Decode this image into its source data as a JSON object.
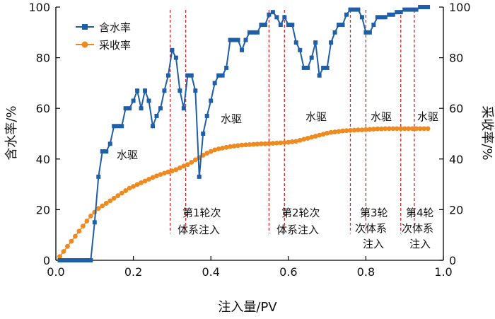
{
  "chart_data": {
    "type": "line",
    "title": "",
    "xlabel": "注入量/PV",
    "ylabel_left": "含水率/%",
    "ylabel_right": "采收率/%",
    "xlim": [
      0,
      1.0
    ],
    "ylim_left": [
      0,
      100
    ],
    "ylim_right": [
      0,
      100
    ],
    "xticks": [
      0.0,
      0.2,
      0.4,
      0.6,
      0.8,
      1.0
    ],
    "xtick_labels": [
      "0.0",
      "0.2",
      "0.4",
      "0.6",
      "0.8",
      "1.0"
    ],
    "yticks": [
      0,
      20,
      40,
      60,
      80,
      100
    ],
    "ytick_labels": [
      "0",
      "20",
      "40",
      "60",
      "80",
      "100"
    ],
    "legend": "top-left",
    "grid": false,
    "colors": {
      "water_cut": "#1f5fa8",
      "recovery": "#ee8a1f",
      "divider": "#d62728",
      "axis": "#000000"
    },
    "series": [
      {
        "name": "含水率",
        "axis": "left",
        "marker": "square",
        "x": [
          0.01,
          0.02,
          0.03,
          0.04,
          0.05,
          0.06,
          0.07,
          0.08,
          0.09,
          0.1,
          0.11,
          0.12,
          0.13,
          0.14,
          0.15,
          0.16,
          0.17,
          0.18,
          0.19,
          0.2,
          0.21,
          0.22,
          0.23,
          0.24,
          0.25,
          0.26,
          0.27,
          0.28,
          0.29,
          0.3,
          0.31,
          0.32,
          0.33,
          0.34,
          0.35,
          0.36,
          0.37,
          0.38,
          0.39,
          0.4,
          0.41,
          0.42,
          0.43,
          0.44,
          0.45,
          0.46,
          0.47,
          0.48,
          0.49,
          0.5,
          0.51,
          0.52,
          0.53,
          0.54,
          0.55,
          0.56,
          0.57,
          0.58,
          0.59,
          0.6,
          0.61,
          0.62,
          0.63,
          0.64,
          0.65,
          0.66,
          0.67,
          0.68,
          0.69,
          0.7,
          0.71,
          0.72,
          0.73,
          0.74,
          0.75,
          0.76,
          0.77,
          0.78,
          0.79,
          0.8,
          0.81,
          0.82,
          0.83,
          0.84,
          0.85,
          0.86,
          0.87,
          0.88,
          0.89,
          0.9,
          0.91,
          0.92,
          0.93,
          0.94,
          0.95,
          0.96
        ],
        "values": [
          0,
          0,
          0,
          0,
          0,
          0,
          0,
          0,
          0,
          15,
          33,
          43,
          43,
          46,
          53,
          53,
          53,
          60,
          60,
          63,
          67,
          60,
          67,
          63,
          53,
          57,
          60,
          67,
          73,
          83,
          80,
          67,
          60,
          73,
          73,
          67,
          33,
          50,
          57,
          63,
          70,
          73,
          73,
          76,
          87,
          87,
          87,
          83,
          87,
          90,
          90,
          90,
          93,
          93,
          97,
          98,
          96,
          93,
          96,
          93,
          93,
          86,
          83,
          76,
          76,
          80,
          86,
          73,
          76,
          76,
          86,
          90,
          93,
          93,
          97,
          99,
          99,
          99,
          96,
          90,
          90,
          93,
          96,
          96,
          96,
          97,
          97,
          98,
          98,
          99,
          99,
          99,
          99,
          100,
          100,
          100
        ]
      },
      {
        "name": "采收率",
        "axis": "right",
        "marker": "circle",
        "x": [
          0.01,
          0.02,
          0.03,
          0.04,
          0.05,
          0.06,
          0.07,
          0.08,
          0.09,
          0.1,
          0.11,
          0.12,
          0.13,
          0.14,
          0.15,
          0.16,
          0.17,
          0.18,
          0.19,
          0.2,
          0.21,
          0.22,
          0.23,
          0.24,
          0.25,
          0.26,
          0.27,
          0.28,
          0.29,
          0.3,
          0.31,
          0.32,
          0.33,
          0.34,
          0.35,
          0.36,
          0.37,
          0.38,
          0.39,
          0.4,
          0.41,
          0.42,
          0.43,
          0.44,
          0.45,
          0.46,
          0.47,
          0.48,
          0.49,
          0.5,
          0.51,
          0.52,
          0.53,
          0.54,
          0.55,
          0.56,
          0.57,
          0.58,
          0.59,
          0.6,
          0.61,
          0.62,
          0.63,
          0.64,
          0.65,
          0.66,
          0.67,
          0.68,
          0.69,
          0.7,
          0.71,
          0.72,
          0.73,
          0.74,
          0.75,
          0.76,
          0.77,
          0.78,
          0.79,
          0.8,
          0.81,
          0.82,
          0.83,
          0.84,
          0.85,
          0.86,
          0.87,
          0.88,
          0.89,
          0.9,
          0.91,
          0.92,
          0.93,
          0.94,
          0.95,
          0.96
        ],
        "values": [
          1.5,
          3.5,
          5.5,
          7.5,
          9.5,
          11.5,
          13.5,
          15.5,
          17.5,
          19,
          20.5,
          21.5,
          22.5,
          23.5,
          24.5,
          25.5,
          26.5,
          27.5,
          28.5,
          29.2,
          29.9,
          30.6,
          31.3,
          32,
          32.7,
          33.3,
          33.9,
          34.4,
          34.9,
          35.3,
          35.8,
          36.5,
          37.2,
          37.8,
          38.7,
          39.7,
          40.6,
          41.5,
          42.3,
          43,
          43.6,
          44,
          44.3,
          44.6,
          44.9,
          45.1,
          45.3,
          45.5,
          45.6,
          45.7,
          45.8,
          45.9,
          46,
          46,
          46.1,
          46.2,
          46.3,
          46.4,
          46.5,
          46.6,
          46.8,
          47,
          47.4,
          47.8,
          48.2,
          48.6,
          49,
          49.4,
          49.8,
          50.2,
          50.5,
          50.7,
          50.9,
          51.1,
          51.2,
          51.3,
          51.4,
          51.5,
          51.5,
          51.6,
          51.7,
          51.8,
          51.9,
          51.9,
          52,
          52,
          52,
          52,
          52,
          52,
          52,
          52,
          52,
          52,
          52,
          52
        ]
      }
    ],
    "dividers": [
      0.295,
      0.335,
      0.55,
      0.59,
      0.76,
      0.8,
      0.89,
      0.925
    ],
    "annotations": {
      "drive_labels": [
        "水驱",
        "水驱",
        "水驱",
        "水驱",
        "水驱"
      ],
      "stage1": [
        "第1轮次",
        "体系注入"
      ],
      "stage2": [
        "第2轮次",
        "体系注入"
      ],
      "stage3": [
        "第3轮",
        "次体系",
        "注入"
      ],
      "stage4": [
        "第4轮",
        "次体系",
        "注入"
      ]
    }
  }
}
